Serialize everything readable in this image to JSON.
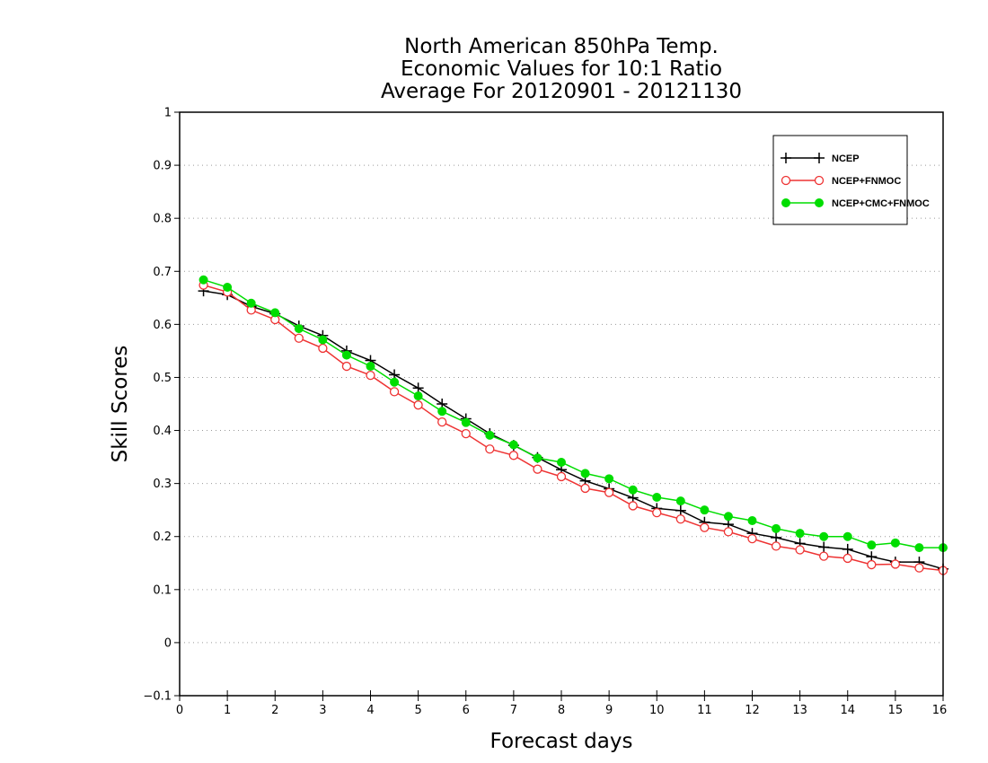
{
  "chart_data": {
    "type": "line",
    "title_lines": [
      "North American 850hPa Temp.",
      "Economic Values for 10:1 Ratio",
      "Average For 20120901 - 20121130"
    ],
    "xlabel": "Forecast days",
    "ylabel": "Skill Scores",
    "xlim": [
      0,
      16
    ],
    "ylim": [
      -0.1,
      1
    ],
    "xticks": [
      "0",
      "1",
      "2",
      "3",
      "4",
      "5",
      "6",
      "7",
      "8",
      "9",
      "10",
      "11",
      "12",
      "13",
      "14",
      "15",
      "16"
    ],
    "yticks": [
      "−0.1",
      "0",
      "0.1",
      "0.2",
      "0.3",
      "0.4",
      "0.5",
      "0.6",
      "0.7",
      "0.8",
      "0.9",
      "1"
    ],
    "grid": "horizontal-dotted",
    "legend_position": "top-right",
    "x": [
      0.5,
      1,
      1.5,
      2,
      2.5,
      3,
      3.5,
      4,
      4.5,
      5,
      5.5,
      6,
      6.5,
      7,
      7.5,
      8,
      8.5,
      9,
      9.5,
      10,
      10.5,
      11,
      11.5,
      12,
      12.5,
      13,
      13.5,
      14,
      14.5,
      15,
      15.5,
      16
    ],
    "series": [
      {
        "name": "NCEP",
        "color": "#000000",
        "marker": "plus",
        "values": [
          0.663,
          0.656,
          0.634,
          0.62,
          0.597,
          0.579,
          0.55,
          0.532,
          0.505,
          0.48,
          0.45,
          0.422,
          0.394,
          0.372,
          0.349,
          0.326,
          0.305,
          0.29,
          0.273,
          0.253,
          0.249,
          0.227,
          0.223,
          0.206,
          0.198,
          0.187,
          0.18,
          0.176,
          0.162,
          0.152,
          0.152,
          0.139
        ]
      },
      {
        "name": "NCEP+FNMOC",
        "color": "#ee3333",
        "marker": "open-circle",
        "values": [
          0.674,
          0.661,
          0.627,
          0.609,
          0.574,
          0.555,
          0.521,
          0.504,
          0.473,
          0.448,
          0.416,
          0.394,
          0.365,
          0.353,
          0.327,
          0.313,
          0.291,
          0.283,
          0.258,
          0.245,
          0.233,
          0.217,
          0.209,
          0.196,
          0.182,
          0.175,
          0.163,
          0.159,
          0.147,
          0.148,
          0.141,
          0.136
        ]
      },
      {
        "name": "NCEP+CMC+FNMOC",
        "color": "#00dd00",
        "marker": "filled-circle",
        "values": [
          0.684,
          0.67,
          0.64,
          0.622,
          0.592,
          0.571,
          0.542,
          0.521,
          0.491,
          0.465,
          0.436,
          0.415,
          0.391,
          0.373,
          0.348,
          0.34,
          0.319,
          0.309,
          0.288,
          0.274,
          0.267,
          0.25,
          0.238,
          0.23,
          0.215,
          0.206,
          0.2,
          0.2,
          0.184,
          0.188,
          0.179,
          0.179
        ]
      }
    ]
  }
}
